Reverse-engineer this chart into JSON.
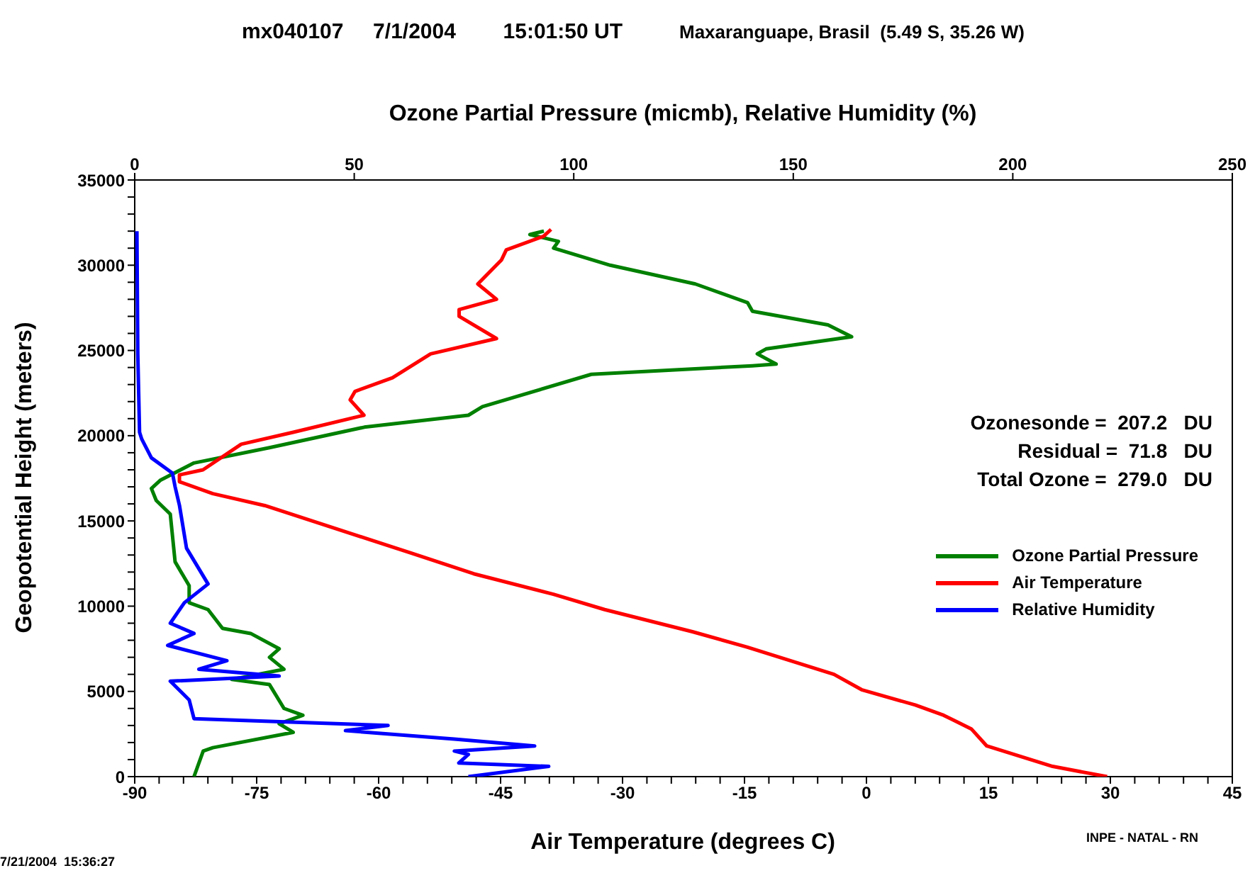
{
  "chart_data": {
    "type": "line",
    "title": "mx040107     7/1/2004        15:01:50 UT",
    "subtitle": "Maxaranguape, Brasil  (5.49 S, 35.26 W)",
    "xlabel": "Air Temperature (degrees C)",
    "x2label": "Ozone Partial Pressure (micmb), Relative Humidity (%)",
    "ylabel": "Geopotential Height (meters)",
    "xlim": [
      -90,
      45
    ],
    "xticks": [
      -90,
      {
        "value": -87,
        "label": null
      },
      {
        "value": -84,
        "label": null
      },
      {
        "value": -81,
        "label": null
      },
      {
        "value": -78,
        "label": null
      },
      -75,
      {
        "value": -72,
        "label": null
      },
      {
        "value": -69,
        "label": null
      },
      {
        "value": -66,
        "label": null
      },
      {
        "value": -63,
        "label": null
      },
      -60,
      {
        "value": -57,
        "label": null
      },
      {
        "value": -54,
        "label": null
      },
      {
        "value": -51,
        "label": null
      },
      {
        "value": -48,
        "label": null
      },
      -45,
      {
        "value": -42,
        "label": null
      },
      {
        "value": -39,
        "label": null
      },
      {
        "value": -36,
        "label": null
      },
      {
        "value": -33,
        "label": null
      },
      -30,
      {
        "value": -27,
        "label": null
      },
      {
        "value": -24,
        "label": null
      },
      {
        "value": -21,
        "label": null
      },
      {
        "value": -18,
        "label": null
      },
      -15,
      {
        "value": -12,
        "label": null
      },
      {
        "value": -9,
        "label": null
      },
      {
        "value": -6,
        "label": null
      },
      {
        "value": -3,
        "label": null
      },
      0,
      {
        "value": 3,
        "label": null
      },
      {
        "value": 6,
        "label": null
      },
      {
        "value": 9,
        "label": null
      },
      {
        "value": 12,
        "label": null
      },
      15,
      {
        "value": 18,
        "label": null
      },
      {
        "value": 21,
        "label": null
      },
      {
        "value": 24,
        "label": null
      },
      {
        "value": 27,
        "label": null
      },
      30,
      {
        "value": 33,
        "label": null
      },
      {
        "value": 36,
        "label": null
      },
      {
        "value": 39,
        "label": null
      },
      {
        "value": 42,
        "label": null
      },
      45
    ],
    "x2lim": [
      0,
      250
    ],
    "x2ticks": [
      0,
      50,
      100,
      150,
      200,
      250
    ],
    "ylim": [
      0,
      35000
    ],
    "yticks": [
      0,
      {
        "value": 1000,
        "label": null
      },
      {
        "value": 2000,
        "label": null
      },
      {
        "value": 3000,
        "label": null
      },
      {
        "value": 4000,
        "label": null
      },
      5000,
      {
        "value": 6000,
        "label": null
      },
      {
        "value": 7000,
        "label": null
      },
      {
        "value": 8000,
        "label": null
      },
      {
        "value": 9000,
        "label": null
      },
      10000,
      {
        "value": 11000,
        "label": null
      },
      {
        "value": 12000,
        "label": null
      },
      {
        "value": 13000,
        "label": null
      },
      {
        "value": 14000,
        "label": null
      },
      15000,
      {
        "value": 16000,
        "label": null
      },
      {
        "value": 17000,
        "label": null
      },
      {
        "value": 18000,
        "label": null
      },
      {
        "value": 19000,
        "label": null
      },
      20000,
      {
        "value": 21000,
        "label": null
      },
      {
        "value": 22000,
        "label": null
      },
      {
        "value": 23000,
        "label": null
      },
      {
        "value": 24000,
        "label": null
      },
      25000,
      {
        "value": 26000,
        "label": null
      },
      {
        "value": 27000,
        "label": null
      },
      {
        "value": 28000,
        "label": null
      },
      {
        "value": 29000,
        "label": null
      },
      30000,
      {
        "value": 31000,
        "label": null
      },
      {
        "value": 32000,
        "label": null
      },
      {
        "value": 33000,
        "label": null
      },
      {
        "value": 34000,
        "label": null
      },
      35000
    ],
    "legend": "right",
    "marker": "none",
    "line_style": "solid",
    "series": [
      {
        "name": "Ozone Partial Pressure",
        "color": "#008000",
        "axis": "x2",
        "x": [
          13.5,
          15.6,
          17.8,
          36.1,
          32.9,
          38.3,
          34.0,
          30.7,
          22.1,
          34.0,
          30.7,
          32.9,
          26.4,
          20.0,
          16.7,
          12.4,
          12.4,
          9.2,
          8.1,
          4.9,
          3.8,
          5.9,
          13.5,
          30.7,
          52.3,
          76.0,
          79.2,
          104.0,
          140.7,
          146.1,
          141.8,
          143.9,
          163.3,
          157.9,
          140.7,
          139.6,
          127.7,
          108.3,
          95.4,
          96.5,
          90.0,
          93.2
        ],
        "values": [
          0,
          1500,
          1700,
          2600,
          3100,
          3600,
          4000,
          5400,
          5700,
          6300,
          7000,
          7500,
          8400,
          8700,
          9800,
          10200,
          11200,
          12600,
          15400,
          16200,
          16900,
          17400,
          18400,
          19300,
          20500,
          21200,
          21700,
          23600,
          24100,
          24200,
          24800,
          25100,
          25800,
          26500,
          27300,
          27800,
          28900,
          30000,
          31000,
          31400,
          31800,
          32000
        ]
      },
      {
        "name": "Air Temperature",
        "color": "#ff0000",
        "x": [
          29.6,
          22.9,
          14.8,
          12.9,
          9.5,
          6.0,
          -0.6,
          -4.0,
          -14.7,
          -21.4,
          -32.2,
          -38.5,
          -48.3,
          -55.9,
          -74.0,
          -80.4,
          -84.5,
          -84.5,
          -81.6,
          -76.9,
          -70.5,
          -61.8,
          -63.5,
          -62.9,
          -58.3,
          -53.6,
          -45.5,
          -50.1,
          -50.1,
          -45.5,
          -47.8,
          -44.9,
          -44.3,
          -39.7,
          -38.8
        ],
        "values": [
          0,
          600,
          1800,
          2800,
          3600,
          4200,
          5100,
          6000,
          7600,
          8500,
          9800,
          10700,
          11900,
          13100,
          15900,
          16600,
          17300,
          17700,
          18000,
          19500,
          20200,
          21200,
          22100,
          22600,
          23400,
          24800,
          25700,
          27000,
          27400,
          28000,
          28900,
          30300,
          30900,
          31700,
          32100
        ]
      },
      {
        "name": "Relative Humidity",
        "color": "#0000ff",
        "axis": "x2",
        "x": [
          76.0,
          94.3,
          73.8,
          76.0,
          72.8,
          91.1,
          72.8,
          48.0,
          57.7,
          13.5,
          12.4,
          8.1,
          32.9,
          14.6,
          21.0,
          7.5,
          13.5,
          8.1,
          11.3,
          16.7,
          11.8,
          10.2,
          9.2,
          8.6,
          3.8,
          1.6,
          1.1,
          0.7,
          0.5
        ],
        "values": [
          0,
          600,
          800,
          1300,
          1500,
          1800,
          2200,
          2700,
          3000,
          3400,
          4500,
          5600,
          5900,
          6300,
          6800,
          7700,
          8400,
          9000,
          10200,
          11300,
          13400,
          15900,
          17000,
          17800,
          18700,
          19800,
          20200,
          24800,
          32000
        ]
      }
    ],
    "annotations": [
      "Ozonesonde =  207.2   DU",
      "Residual =  71.8   DU",
      "Total Ozone =  279.0   DU",
      "INPE - NATAL - RN",
      "7/21/2004  15:36:27"
    ]
  }
}
